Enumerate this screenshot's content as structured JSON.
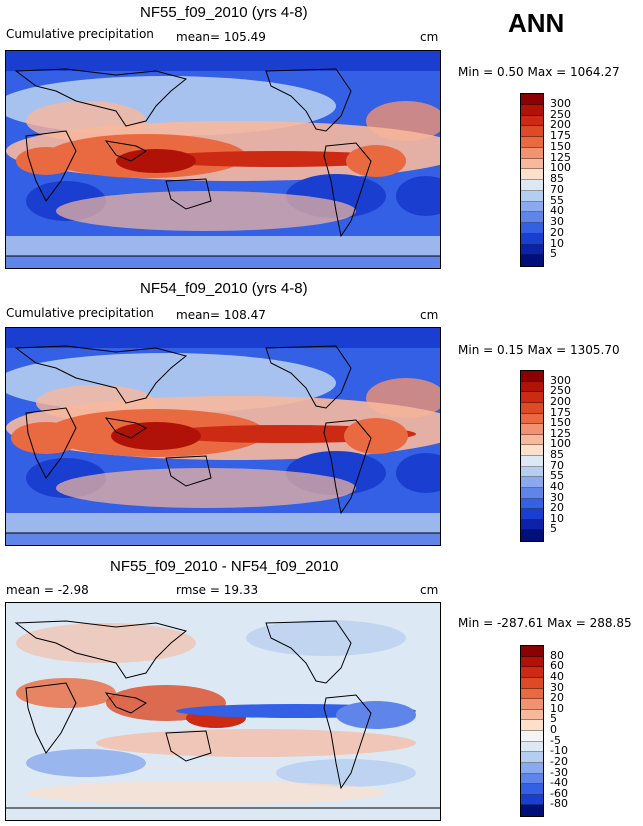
{
  "season": "ANN",
  "panels": [
    {
      "title": "NF55_f09_2010 (yrs 4-8)",
      "left_label": "Cumulative precipitation",
      "mean_label": "mean= 105.49",
      "units": "cm",
      "minmax": "Min =    0.50 Max = 1064.27"
    },
    {
      "title": "NF54_f09_2010 (yrs 4-8)",
      "left_label": "Cumulative precipitation",
      "mean_label": "mean= 108.47",
      "units": "cm",
      "minmax": "Min =    0.15 Max = 1305.70"
    },
    {
      "title": "NF55_f09_2010 - NF54_f09_2010",
      "left_label": "mean =   -2.98",
      "mean_label": "rmse =  19.33",
      "units": "cm",
      "minmax": "Min = -287.61 Max = 288.85"
    }
  ],
  "chart_data": [
    {
      "type": "heatmap",
      "title": "NF55_f09_2010 (yrs 4-8)",
      "variable": "Cumulative precipitation",
      "units": "cm",
      "mean": 105.49,
      "min": 0.5,
      "max": 1064.27,
      "colorbar_levels": [
        "300",
        "250",
        "200",
        "175",
        "150",
        "125",
        "100",
        "85",
        "70",
        "55",
        "40",
        "30",
        "20",
        "10",
        "5"
      ],
      "colorbar_colors": [
        "#8b0000",
        "#b01208",
        "#cc2a12",
        "#dc4a26",
        "#e96a40",
        "#f19270",
        "#f7b89c",
        "#fce0cc",
        "#dde8f5",
        "#b5cdf0",
        "#8aa9ee",
        "#5f85ea",
        "#3360e5",
        "#1a3ed0",
        "#0d22a8",
        "#000f7a"
      ]
    },
    {
      "type": "heatmap",
      "title": "NF54_f09_2010 (yrs 4-8)",
      "variable": "Cumulative precipitation",
      "units": "cm",
      "mean": 108.47,
      "min": 0.15,
      "max": 1305.7,
      "colorbar_levels": [
        "300",
        "250",
        "200",
        "175",
        "150",
        "125",
        "100",
        "85",
        "70",
        "55",
        "40",
        "30",
        "20",
        "10",
        "5"
      ],
      "colorbar_colors": [
        "#8b0000",
        "#b01208",
        "#cc2a12",
        "#dc4a26",
        "#e96a40",
        "#f19270",
        "#f7b89c",
        "#fce0cc",
        "#dde8f5",
        "#b5cdf0",
        "#8aa9ee",
        "#5f85ea",
        "#3360e5",
        "#1a3ed0",
        "#0d22a8",
        "#000f7a"
      ]
    },
    {
      "type": "heatmap",
      "title": "NF55_f09_2010 - NF54_f09_2010",
      "units": "cm",
      "mean": -2.98,
      "rmse": 19.33,
      "min": -287.61,
      "max": 288.85,
      "colorbar_levels": [
        "80",
        "60",
        "40",
        "30",
        "20",
        "10",
        "5",
        "0",
        "-5",
        "-10",
        "-20",
        "-30",
        "-40",
        "-60",
        "-80"
      ],
      "colorbar_colors": [
        "#8b0000",
        "#b01208",
        "#cc2a12",
        "#dc4a26",
        "#e96a40",
        "#f19270",
        "#f7b89c",
        "#fce0cc",
        "#f4f4f4",
        "#dde8f5",
        "#b5cdf0",
        "#8aa9ee",
        "#5f85ea",
        "#3360e5",
        "#1a3ed0",
        "#000f7a"
      ]
    }
  ]
}
